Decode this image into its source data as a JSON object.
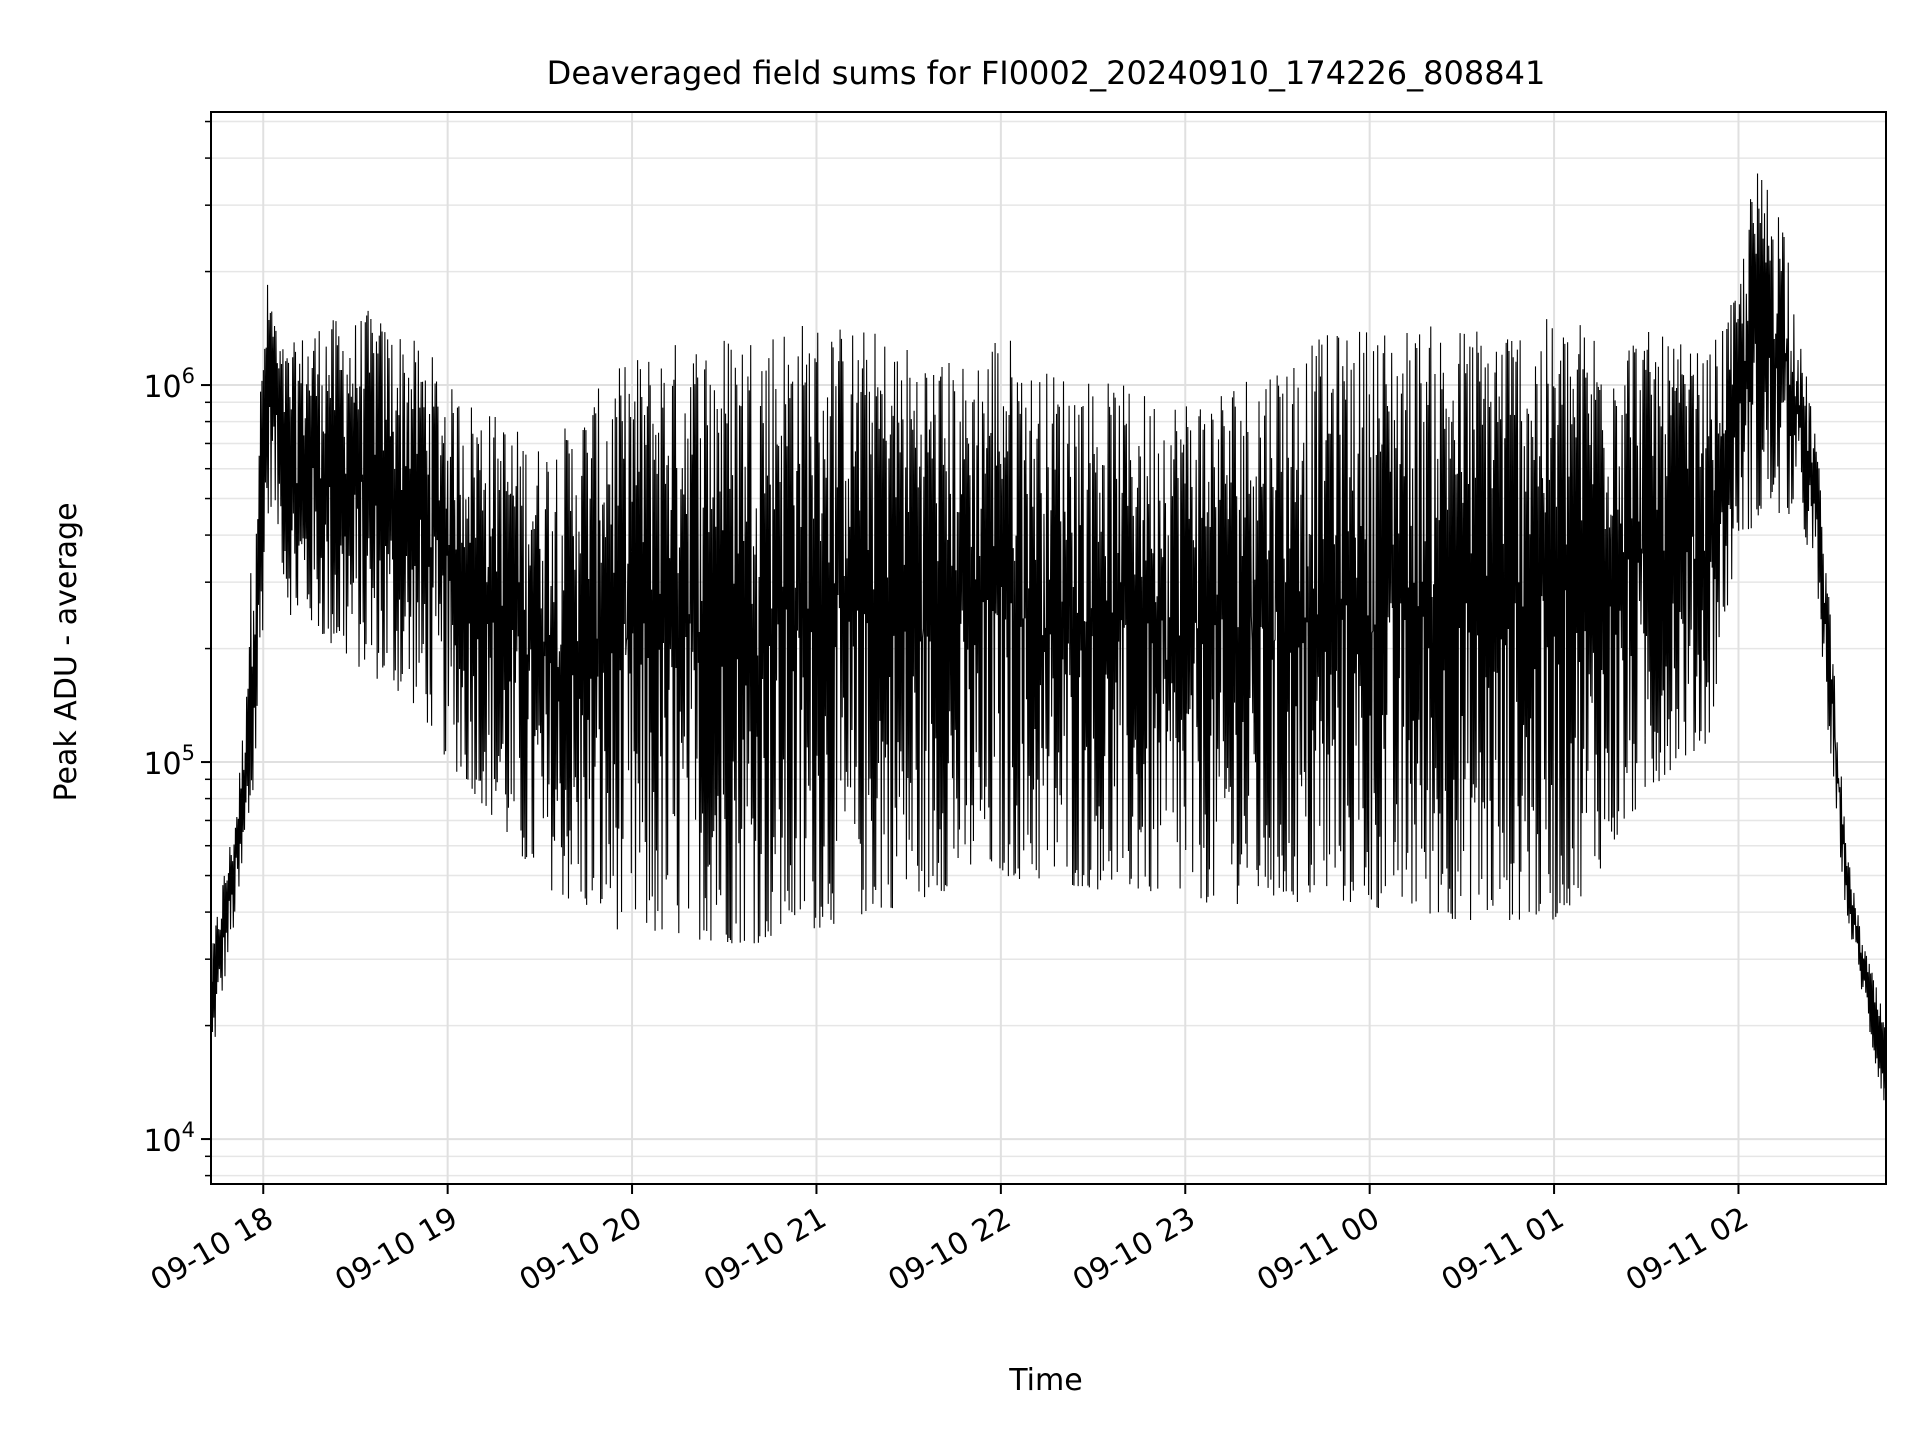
{
  "chart_data": {
    "type": "line",
    "title": "Deaveraged field sums for FI0002_20240910_174226_808841",
    "xlabel": "Time",
    "ylabel": "Peak ADU - average",
    "yscale": "log",
    "grid": true,
    "ylim": [
      7600,
      5300000
    ],
    "xlim": [
      "2024-09-10 17:43",
      "2024-09-11 02:48"
    ],
    "x_ticks": [
      {
        "value": "2024-09-10 18:00",
        "label": "09-10 18"
      },
      {
        "value": "2024-09-10 19:00",
        "label": "09-10 19"
      },
      {
        "value": "2024-09-10 20:00",
        "label": "09-10 20"
      },
      {
        "value": "2024-09-10 21:00",
        "label": "09-10 21"
      },
      {
        "value": "2024-09-10 22:00",
        "label": "09-10 22"
      },
      {
        "value": "2024-09-10 23:00",
        "label": "09-10 23"
      },
      {
        "value": "2024-09-11 00:00",
        "label": "09-11 00"
      },
      {
        "value": "2024-09-11 01:00",
        "label": "09-11 01"
      },
      {
        "value": "2024-09-11 02:00",
        "label": "09-11 02"
      }
    ],
    "y_ticks": [
      {
        "value": 10000,
        "base": "10",
        "exp": "4"
      },
      {
        "value": 100000,
        "base": "10",
        "exp": "5"
      },
      {
        "value": 1000000,
        "base": "10",
        "exp": "6"
      }
    ],
    "series": [
      {
        "color": "#000000",
        "x": [
          "2024-09-10 17:43",
          "2024-09-10 17:45",
          "2024-09-10 17:47",
          "2024-09-10 17:49",
          "2024-09-10 17:51",
          "2024-09-10 17:53",
          "2024-09-10 17:55",
          "2024-09-10 17:57",
          "2024-09-10 17:59",
          "2024-09-10 18:01",
          "2024-09-10 18:03",
          "2024-09-10 18:05",
          "2024-09-10 18:08",
          "2024-09-10 18:12",
          "2024-09-10 18:16",
          "2024-09-10 18:20",
          "2024-09-10 18:25",
          "2024-09-10 18:30",
          "2024-09-10 18:35",
          "2024-09-10 18:40",
          "2024-09-10 18:45",
          "2024-09-10 18:50",
          "2024-09-10 18:55",
          "2024-09-10 19:00",
          "2024-09-10 19:05",
          "2024-09-10 19:10",
          "2024-09-10 19:15",
          "2024-09-10 19:20",
          "2024-09-10 19:25",
          "2024-09-10 19:30",
          "2024-09-10 19:35",
          "2024-09-10 19:40",
          "2024-09-10 19:45",
          "2024-09-10 19:50",
          "2024-09-10 19:55",
          "2024-09-10 20:00",
          "2024-09-10 20:10",
          "2024-09-10 20:20",
          "2024-09-10 20:30",
          "2024-09-10 20:40",
          "2024-09-10 20:50",
          "2024-09-10 21:00",
          "2024-09-10 21:10",
          "2024-09-10 21:20",
          "2024-09-10 21:30",
          "2024-09-10 21:40",
          "2024-09-10 21:50",
          "2024-09-10 22:00",
          "2024-09-10 22:10",
          "2024-09-10 22:20",
          "2024-09-10 22:30",
          "2024-09-10 22:40",
          "2024-09-10 22:50",
          "2024-09-10 23:00",
          "2024-09-10 23:10",
          "2024-09-10 23:20",
          "2024-09-10 23:30",
          "2024-09-10 23:40",
          "2024-09-10 23:50",
          "2024-09-11 00:00",
          "2024-09-11 00:10",
          "2024-09-11 00:20",
          "2024-09-11 00:30",
          "2024-09-11 00:40",
          "2024-09-11 00:50",
          "2024-09-11 01:00",
          "2024-09-11 01:10",
          "2024-09-11 01:20",
          "2024-09-11 01:30",
          "2024-09-11 01:40",
          "2024-09-11 01:50",
          "2024-09-11 02:00",
          "2024-09-11 02:05",
          "2024-09-11 02:10",
          "2024-09-11 02:15",
          "2024-09-11 02:20",
          "2024-09-11 02:25",
          "2024-09-11 02:30",
          "2024-09-11 02:35",
          "2024-09-11 02:40",
          "2024-09-11 02:45",
          "2024-09-11 02:48"
        ],
        "low": [
          15000,
          20000,
          25000,
          32000,
          38000,
          45000,
          60000,
          80000,
          150000,
          400000,
          500000,
          400000,
          250000,
          230000,
          230000,
          210000,
          190000,
          180000,
          170000,
          160000,
          150000,
          140000,
          120000,
          100000,
          90000,
          80000,
          70000,
          60000,
          52000,
          48000,
          45000,
          42000,
          40000,
          38000,
          36000,
          35000,
          34000,
          34000,
          33000,
          33000,
          34000,
          36000,
          38000,
          40000,
          42000,
          45000,
          48000,
          50000,
          48000,
          47000,
          46000,
          45000,
          44000,
          43000,
          42000,
          42000,
          42000,
          42000,
          42000,
          41000,
          40000,
          39000,
          38000,
          38000,
          38000,
          38000,
          45000,
          60000,
          80000,
          100000,
          110000,
          400000,
          420000,
          450000,
          450000,
          450000,
          300000,
          100000,
          40000,
          25000,
          15000,
          12000
        ],
        "high": [
          30000,
          40000,
          50000,
          60000,
          75000,
          110000,
          220000,
          500000,
          1000000,
          1900000,
          1800000,
          1300000,
          1250000,
          1350000,
          1450000,
          1500000,
          1500000,
          1500000,
          1600000,
          1450000,
          1400000,
          1300000,
          1200000,
          1000000,
          950000,
          900000,
          850000,
          800000,
          750000,
          700000,
          750000,
          800000,
          900000,
          1000000,
          1100000,
          1200000,
          1300000,
          1350000,
          1400000,
          1450000,
          1500000,
          1500000,
          1450000,
          1400000,
          1300000,
          1200000,
          1150000,
          1500000,
          1100000,
          1100000,
          1050000,
          1000000,
          950000,
          950000,
          1000000,
          1100000,
          1200000,
          1300000,
          1400000,
          1450000,
          1450000,
          1450000,
          1450000,
          1500000,
          1500000,
          1500000,
          1500000,
          1450000,
          1400000,
          1300000,
          1200000,
          1800000,
          3800000,
          3500000,
          2800000,
          1300000,
          800000,
          250000,
          60000,
          35000,
          25000,
          20000
        ]
      }
    ]
  }
}
